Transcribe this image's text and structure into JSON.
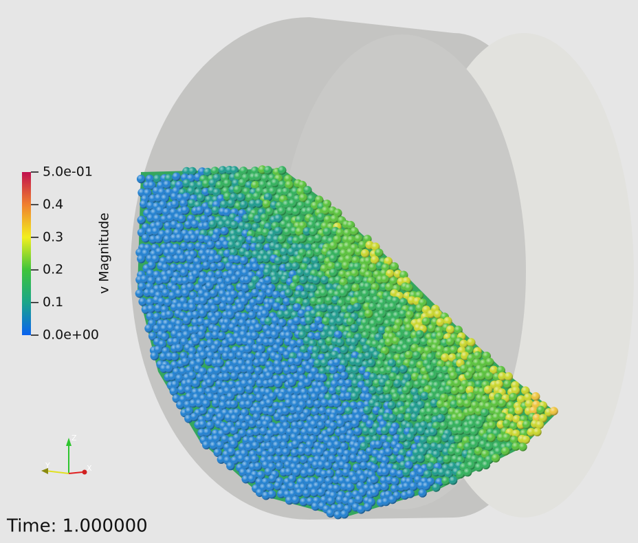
{
  "colorbar": {
    "title": "v Magnitude",
    "lim": [
      0,
      0.5
    ],
    "ticks": [
      {
        "value": 0.5,
        "label": "5.0e-01"
      },
      0.4,
      0.3,
      0.2,
      0.1,
      {
        "value": 0,
        "label": "0.0e+00"
      }
    ]
  },
  "axes_triad": {
    "z": "Z",
    "y": "Y",
    "x": "X"
  },
  "time_label": "Time: 1.000000"
}
